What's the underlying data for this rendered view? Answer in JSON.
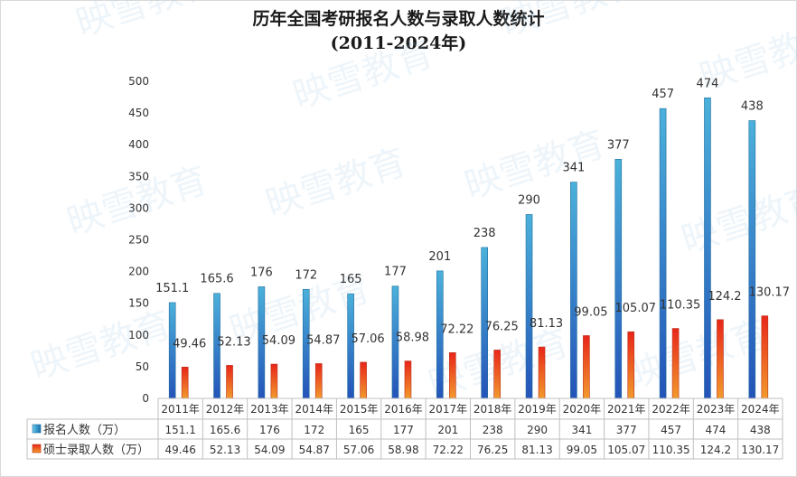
{
  "chart_data": {
    "type": "bar",
    "title_line1": "历年全国考研报名人数与录取人数统计",
    "title_line2": "(2011-2024年)",
    "categories": [
      "2011年",
      "2012年",
      "2013年",
      "2014年",
      "2015年",
      "2016年",
      "2017年",
      "2018年",
      "2019年",
      "2020年",
      "2021年",
      "2022年",
      "2023年",
      "2024年"
    ],
    "series": [
      {
        "name": "报名人数（万）",
        "color": "#2e8fc6",
        "values": [
          151.1,
          165.6,
          176,
          172,
          165,
          177,
          201,
          238,
          290,
          341,
          377,
          457,
          474,
          438
        ]
      },
      {
        "name": "硕士录取人数（万）",
        "color": "#e8421d",
        "values": [
          49.46,
          52.13,
          54.09,
          54.87,
          57.06,
          58.98,
          72.22,
          76.25,
          81.13,
          99.05,
          105.07,
          110.35,
          124.2,
          130.17
        ]
      }
    ],
    "ylim": [
      0,
      500
    ],
    "yticks": [
      0,
      50,
      100,
      150,
      200,
      250,
      300,
      350,
      400,
      450,
      500
    ],
    "grid": false,
    "legend": "data-table"
  },
  "watermark": "映雪教育"
}
